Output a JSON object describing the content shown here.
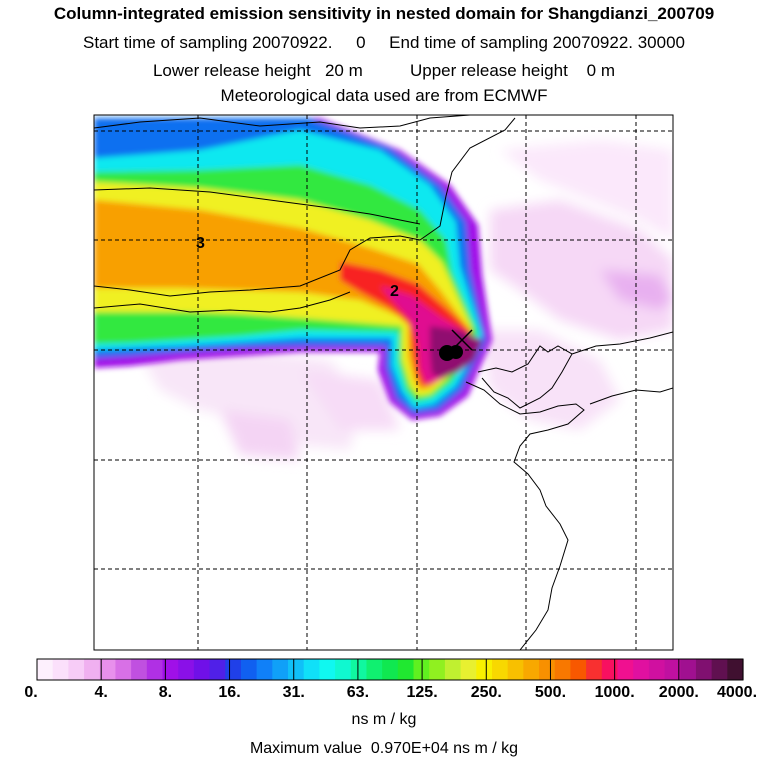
{
  "title": "Column-integrated emission sensitivity in nested domain for Shangdianzi_200709",
  "sampling_line": "Start time of sampling 20070922.     0     End time of sampling 20070922. 30000",
  "release_line": "Lower release height   20 m          Upper release height    0 m",
  "met_line": "Meteorological data used are from ECMWF",
  "contour_labels": [
    "3",
    "2"
  ],
  "colorbar": {
    "tick_labels": [
      "0.",
      "4.",
      "8.",
      "16.",
      "31.",
      "63.",
      "125.",
      "250.",
      "500.",
      "1000.",
      "2000.",
      "4000."
    ],
    "colors": [
      "#fdf0fd",
      "#fbe0fb",
      "#f7ccf7",
      "#f0b0f0",
      "#e890ec",
      "#d870e6",
      "#c050e0",
      "#b030e4",
      "#a010e8",
      "#8a10e8",
      "#7010e8",
      "#5020e8",
      "#2040e8",
      "#1060f0",
      "#1080f8",
      "#10a0f8",
      "#10c0f8",
      "#10e0f8",
      "#10f8f0",
      "#10f8d0",
      "#10f8a0",
      "#10f070",
      "#10e850",
      "#20e830",
      "#60f020",
      "#90f020",
      "#c0f030",
      "#e8f030",
      "#f8f000",
      "#f8d800",
      "#f8c000",
      "#f8a800",
      "#f89000",
      "#f87800",
      "#f85800",
      "#f83030",
      "#f81060",
      "#f01090",
      "#e010a0",
      "#d010a0",
      "#c010a0",
      "#a01090",
      "#801070",
      "#601050",
      "#401030"
    ],
    "units": "ns m / kg"
  },
  "max_value_text": "Maximum value  0.970E+04 ns m / kg"
}
